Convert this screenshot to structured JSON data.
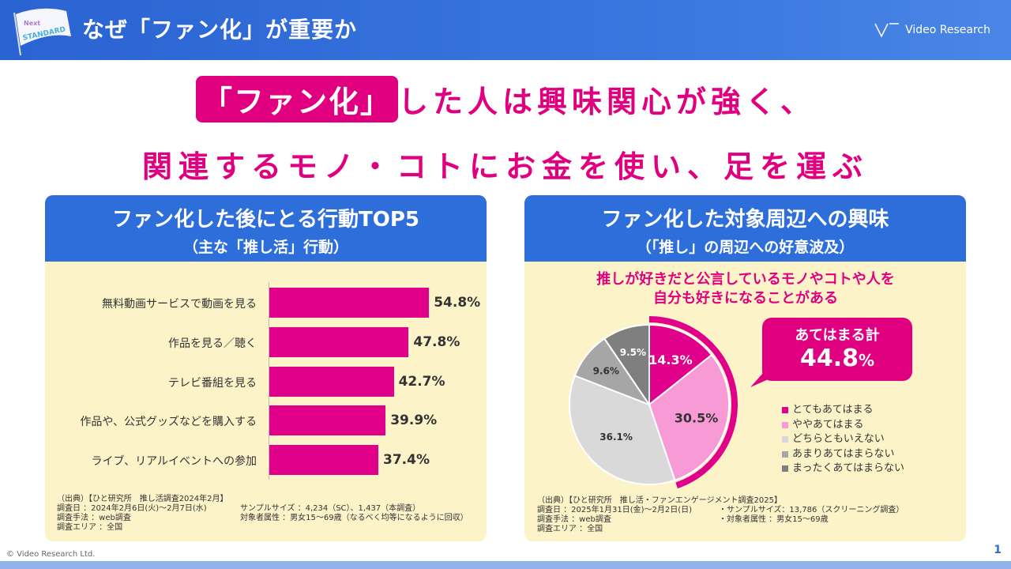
{
  "header": {
    "title": "なぜ「ファン化」が重要か",
    "logo_text": "Video Research",
    "flag_text": "Next STANDARD"
  },
  "headline": {
    "badge": "「ファン化」",
    "line1_rest": "した人は興味関心が強く、",
    "line2": "関連するモノ・コトにお金を使い、足を運ぶ"
  },
  "left_panel": {
    "title": "ファン化した後にとる行動TOP5",
    "subtitle": "（主な「推し活」行動）",
    "source": {
      "line0": "（出典）【ひと研究所　推し活調査2024年2月】",
      "date": "調査日 ：2024年2月6日(火)〜2月7日(水)",
      "method": "調査手法 ：web調査",
      "area": "調査エリア ：全国",
      "sample": "サンプルサイズ ：4,234（SC）、1,437（本調査）",
      "attr": "対象者属性 ：男女15〜69歳（なるべく均等になるように回収）"
    }
  },
  "chart_data": [
    {
      "type": "bar",
      "orientation": "horizontal",
      "categories": [
        "無料動画サービスで動画を見る",
        "作品を見る／聴く",
        "テレビ番組を見る",
        "作品や、公式グッズなどを購入する",
        "ライブ、リアルイベントへの参加"
      ],
      "values": [
        54.8,
        47.8,
        42.7,
        39.9,
        37.4
      ],
      "labels": [
        "54.8%",
        "47.8%",
        "42.7%",
        "39.9%",
        "37.4%"
      ],
      "color": "#e0008a"
    },
    {
      "type": "pie",
      "title": "推しが好きだと公言しているモノやコトや人を自分も好きになることがある",
      "categories": [
        "とてもあてはまる",
        "ややあてはまる",
        "どちらともいえない",
        "あまりあてはまらない",
        "まったくあてはまらない"
      ],
      "values": [
        14.3,
        30.5,
        36.1,
        9.6,
        9.5
      ],
      "labels": [
        "14.3%",
        "30.5%",
        "36.1%",
        "9.6%",
        "9.5%"
      ],
      "colors": [
        "#e0008a",
        "#f79ad6",
        "#d9d9d9",
        "#a6a6a6",
        "#7f7f7f"
      ],
      "legend": "right",
      "highlight": {
        "label": "あてはまる計",
        "value": "44.8",
        "unit": "%"
      }
    }
  ],
  "right_panel": {
    "title": "ファン化した対象周辺への興味",
    "subtitle": "（「推し」の周辺への好意波及）",
    "question_l1": "推しが好きだと公言しているモノやコトや人を",
    "question_l2": "自分も好きになることがある",
    "source": {
      "line0": "（出典）【ひと研究所　推し活・ファンエンゲージメント調査2025】",
      "date": "調査日 ：2025年1月31日(金)〜2月2日(日)",
      "method": "調査手法 ：web調査",
      "area": "調査エリア ：全国",
      "sample": "・サンプルサイズ：13,786（スクリーニング調査）",
      "attr": "・対象者属性 ：男女15〜69歳"
    }
  },
  "footer": {
    "copyright": "© Video Research Ltd.",
    "page": "1"
  }
}
